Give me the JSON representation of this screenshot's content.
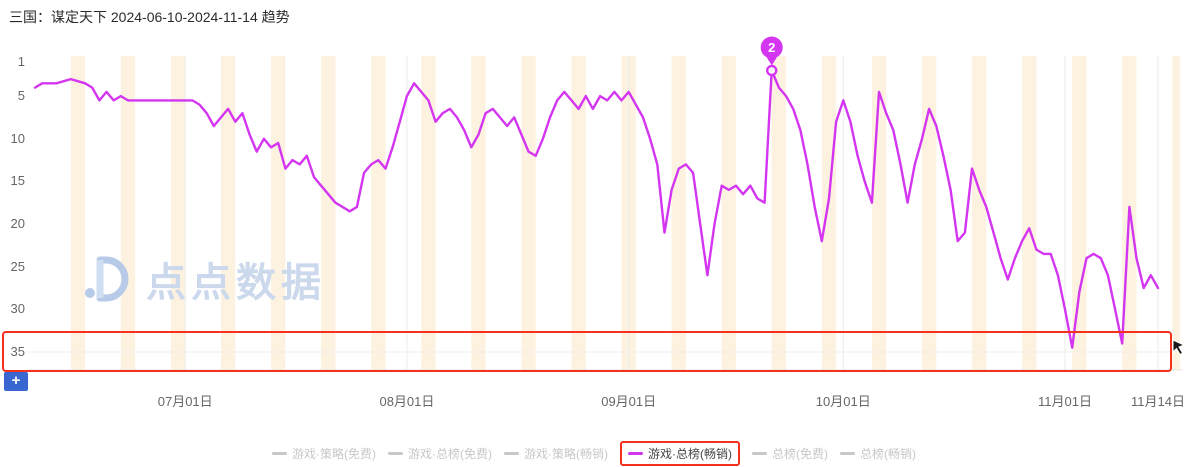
{
  "page": {
    "title": "三国：谋定天下 2024-06-10-2024-11-14 趋势"
  },
  "watermark": {
    "text": "点点数据"
  },
  "controls": {
    "zoom_in_label": "+"
  },
  "colors": {
    "line": "#d435f1",
    "weekend_stripe": "#fdf2df",
    "grid": "#ebebeb",
    "axis_line": "#e3e3e3",
    "rank_floor_line": "#eeeeee",
    "annotation_red": "#f5311d",
    "legend_inactive": "#c8c8c8",
    "legend_active_text": "#464646",
    "axis_text": "#666666",
    "watermark_color": "#ccd9ec"
  },
  "chart_data": {
    "type": "line",
    "title": "三国：谋定天下 2024-06-10-2024-11-14 趋势",
    "start_date": "2024-06-10",
    "end_date": "2024-11-14",
    "y_axis": {
      "inverted": true,
      "ticks": [
        1,
        5,
        10,
        15,
        20,
        25,
        30,
        35
      ],
      "meaning": "rank (1 = best)"
    },
    "x_axis": {
      "total_days": 157,
      "tick_days": [
        21,
        52,
        83,
        113,
        144,
        157
      ],
      "tick_labels": [
        "07月01日",
        "08月01日",
        "09月01日",
        "10月01日",
        "11月01日",
        "11月14日"
      ]
    },
    "weekend_stripes": {
      "first_start_day": 5,
      "period_days": 7,
      "width_days": 2
    },
    "annotation": {
      "label": "2",
      "day": 103,
      "rank": 2,
      "meaning": "best rank reached"
    },
    "legend": [
      {
        "label": "游戏·策略(免费)",
        "active": false
      },
      {
        "label": "游戏·总榜(免费)",
        "active": false
      },
      {
        "label": "游戏·策略(畅销)",
        "active": false
      },
      {
        "label": "游戏·总榜(畅销)",
        "active": true
      },
      {
        "label": "总榜(免费)",
        "active": false
      },
      {
        "label": "总榜(畅销)",
        "active": false
      }
    ],
    "series": [
      {
        "name": "游戏·总榜(畅销)",
        "points": [
          [
            0,
            4
          ],
          [
            1,
            3.5
          ],
          [
            3,
            3.5
          ],
          [
            5,
            3
          ],
          [
            7,
            3.5
          ],
          [
            8,
            4
          ],
          [
            9,
            5.5
          ],
          [
            10,
            4.5
          ],
          [
            11,
            5.5
          ],
          [
            12,
            5
          ],
          [
            13,
            5.5
          ],
          [
            15,
            5.5
          ],
          [
            17,
            5.5
          ],
          [
            19,
            5.5
          ],
          [
            21,
            5.5
          ],
          [
            22,
            5.5
          ],
          [
            23,
            6
          ],
          [
            24,
            7
          ],
          [
            25,
            8.5
          ],
          [
            26,
            7.5
          ],
          [
            27,
            6.5
          ],
          [
            28,
            8
          ],
          [
            29,
            7
          ],
          [
            30,
            9.5
          ],
          [
            31,
            11.5
          ],
          [
            32,
            10
          ],
          [
            33,
            11
          ],
          [
            34,
            10.5
          ],
          [
            35,
            13.5
          ],
          [
            36,
            12.5
          ],
          [
            37,
            13
          ],
          [
            38,
            12
          ],
          [
            39,
            14.5
          ],
          [
            40,
            15.5
          ],
          [
            41,
            16.5
          ],
          [
            42,
            17.5
          ],
          [
            43,
            18
          ],
          [
            44,
            18.5
          ],
          [
            45,
            18
          ],
          [
            46,
            14
          ],
          [
            47,
            13
          ],
          [
            48,
            12.5
          ],
          [
            49,
            13.5
          ],
          [
            50,
            11
          ],
          [
            51,
            8
          ],
          [
            52,
            5
          ],
          [
            53,
            3.5
          ],
          [
            54,
            4.5
          ],
          [
            55,
            5.5
          ],
          [
            56,
            8
          ],
          [
            57,
            7
          ],
          [
            58,
            6.5
          ],
          [
            59,
            7.5
          ],
          [
            60,
            9
          ],
          [
            61,
            11
          ],
          [
            62,
            9.5
          ],
          [
            63,
            7
          ],
          [
            64,
            6.5
          ],
          [
            65,
            7.5
          ],
          [
            66,
            8.5
          ],
          [
            67,
            7.5
          ],
          [
            68,
            9.5
          ],
          [
            69,
            11.5
          ],
          [
            70,
            12
          ],
          [
            71,
            10
          ],
          [
            72,
            7.5
          ],
          [
            73,
            5.5
          ],
          [
            74,
            4.5
          ],
          [
            75,
            5.5
          ],
          [
            76,
            6.5
          ],
          [
            77,
            5
          ],
          [
            78,
            6.5
          ],
          [
            79,
            5
          ],
          [
            80,
            5.5
          ],
          [
            81,
            4.5
          ],
          [
            82,
            5.5
          ],
          [
            83,
            4.5
          ],
          [
            84,
            6
          ],
          [
            85,
            7.5
          ],
          [
            86,
            10
          ],
          [
            87,
            13
          ],
          [
            88,
            21
          ],
          [
            89,
            16
          ],
          [
            90,
            13.5
          ],
          [
            91,
            13
          ],
          [
            92,
            14
          ],
          [
            93,
            20
          ],
          [
            94,
            26
          ],
          [
            95,
            20
          ],
          [
            96,
            15.5
          ],
          [
            97,
            16
          ],
          [
            98,
            15.5
          ],
          [
            99,
            16.5
          ],
          [
            100,
            15.5
          ],
          [
            101,
            17
          ],
          [
            102,
            17.5
          ],
          [
            103,
            2
          ],
          [
            104,
            4
          ],
          [
            105,
            5
          ],
          [
            106,
            6.5
          ],
          [
            107,
            9
          ],
          [
            108,
            13
          ],
          [
            109,
            18
          ],
          [
            110,
            22
          ],
          [
            111,
            17
          ],
          [
            112,
            8
          ],
          [
            113,
            5.5
          ],
          [
            114,
            8
          ],
          [
            115,
            12
          ],
          [
            116,
            15
          ],
          [
            117,
            17.5
          ],
          [
            118,
            4.5
          ],
          [
            119,
            7
          ],
          [
            120,
            9
          ],
          [
            121,
            13
          ],
          [
            122,
            17.5
          ],
          [
            123,
            13
          ],
          [
            124,
            10
          ],
          [
            125,
            6.5
          ],
          [
            126,
            8.5
          ],
          [
            127,
            12
          ],
          [
            128,
            16
          ],
          [
            129,
            22
          ],
          [
            130,
            21
          ],
          [
            131,
            13.5
          ],
          [
            132,
            16
          ],
          [
            133,
            18
          ],
          [
            134,
            21
          ],
          [
            135,
            24
          ],
          [
            136,
            26.5
          ],
          [
            137,
            24
          ],
          [
            138,
            22
          ],
          [
            139,
            20.5
          ],
          [
            140,
            23
          ],
          [
            141,
            23.5
          ],
          [
            142,
            23.5
          ],
          [
            143,
            26
          ],
          [
            144,
            30
          ],
          [
            145,
            34.5
          ],
          [
            146,
            28
          ],
          [
            147,
            24
          ],
          [
            148,
            23.5
          ],
          [
            149,
            24
          ],
          [
            150,
            26
          ],
          [
            151,
            30
          ],
          [
            152,
            34
          ],
          [
            153,
            18
          ],
          [
            154,
            24
          ],
          [
            155,
            27.5
          ],
          [
            156,
            26
          ],
          [
            157,
            27.5
          ]
        ]
      }
    ]
  }
}
